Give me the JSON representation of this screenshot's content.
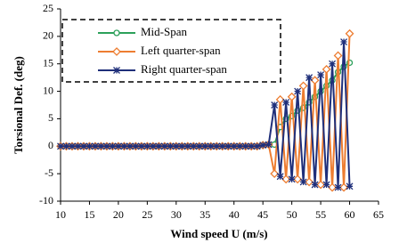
{
  "chart_data": {
    "type": "line",
    "xlabel": "Wind speed U (m/s)",
    "ylabel": "Torsional Def. (deg)",
    "x": [
      10,
      11,
      12,
      13,
      14,
      15,
      16,
      17,
      18,
      19,
      20,
      21,
      22,
      23,
      24,
      25,
      26,
      27,
      28,
      29,
      30,
      31,
      32,
      33,
      34,
      35,
      36,
      37,
      38,
      39,
      40,
      41,
      42,
      43,
      44,
      45,
      46,
      47,
      48,
      49,
      50,
      51,
      52,
      53,
      54,
      55,
      56,
      57,
      58,
      59,
      60
    ],
    "series": [
      {
        "name": "Mid-Span",
        "color": "#2ca05a",
        "marker": "circle",
        "values": [
          0,
          0,
          0,
          0,
          0,
          0,
          0,
          0,
          0,
          0,
          0,
          0,
          0,
          0,
          0,
          0,
          0,
          0,
          0,
          0,
          0,
          0,
          0,
          0,
          0,
          0,
          0,
          0,
          0,
          0,
          0,
          0,
          0,
          0,
          0,
          0.2,
          0.3,
          0.3,
          3.5,
          5,
          5.5,
          6.5,
          7,
          8,
          9,
          10,
          11,
          12,
          13.5,
          14.5,
          15.2
        ]
      },
      {
        "name": "Left quarter-span",
        "color": "#ed7d31",
        "marker": "diamond",
        "values": [
          0,
          0,
          0,
          0,
          0,
          0,
          0,
          0,
          0,
          0,
          0,
          0,
          0,
          0,
          0,
          0,
          0,
          0,
          0,
          0,
          0,
          0,
          0,
          0,
          0,
          0,
          0,
          0,
          0,
          0,
          0,
          0,
          0,
          0,
          0,
          0.2,
          0.3,
          -5,
          8.5,
          -6,
          9,
          -6,
          11,
          -6.5,
          12,
          -7,
          14,
          -7.5,
          16.5,
          -7.5,
          20.5
        ]
      },
      {
        "name": "Right quarter-span",
        "color": "#1f2f7a",
        "marker": "asterisk",
        "values": [
          0,
          0,
          0,
          0,
          0,
          0,
          0,
          0,
          0,
          0,
          0,
          0,
          0,
          0,
          0,
          0,
          0,
          0,
          0,
          0,
          0,
          0,
          0,
          0,
          0,
          0,
          0,
          0,
          0,
          0,
          0,
          0,
          0,
          0,
          0,
          0.2,
          0.3,
          7.5,
          -5.5,
          8,
          -6,
          10,
          -6.5,
          12.5,
          -7,
          13,
          -7,
          15,
          -7.5,
          19,
          -7.3
        ]
      }
    ],
    "xlim": [
      10,
      65
    ],
    "xticks": [
      10,
      15,
      20,
      25,
      30,
      35,
      40,
      45,
      50,
      55,
      60,
      65
    ],
    "ylim": [
      -10,
      25
    ],
    "yticks": [
      -10,
      -5,
      0,
      5,
      10,
      15,
      20,
      25
    ],
    "grid": false,
    "legend": "upper left"
  }
}
